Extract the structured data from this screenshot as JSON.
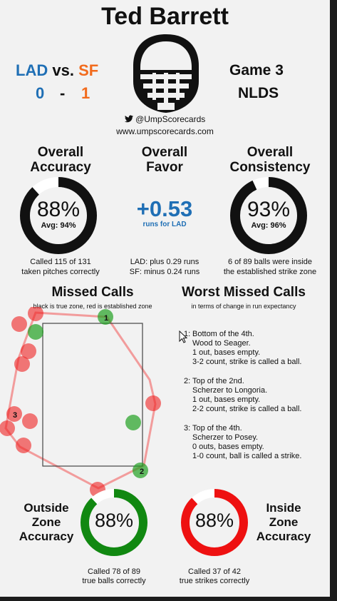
{
  "title": "Ted Barrett",
  "matchup": {
    "away": "LAD",
    "vs": "vs.",
    "home": "SF",
    "away_score": "0",
    "dash": "-",
    "home_score": "1"
  },
  "game": {
    "label": "Game 3",
    "series": "NLDS"
  },
  "social": {
    "handle": "@UmpScorecards",
    "url": "www.umpscorecards.com",
    "icon": "twitter-bird-icon"
  },
  "accuracy": {
    "title_1": "Overall",
    "title_2": "Accuracy",
    "value": "88%",
    "avg": "Avg: 94%",
    "fraction": 0.88,
    "note_1": "Called 115 of 131",
    "note_2": "taken pitches correctly"
  },
  "favor": {
    "title_1": "Overall",
    "title_2": "Favor",
    "value": "+0.53",
    "sub": "runs for LAD",
    "note_1": "LAD: plus 0.29 runs",
    "note_2": "SF: minus 0.24 runs"
  },
  "consistency": {
    "title_1": "Overall",
    "title_2": "Consistency",
    "value": "93%",
    "avg": "Avg: 96%",
    "fraction": 0.93,
    "note_1": "6 of 89 balls were inside",
    "note_2": "the established strike zone"
  },
  "missed": {
    "title": "Missed Calls",
    "subtitle": "black is true zone, red is established zone",
    "labels": [
      "1",
      "2",
      "3"
    ]
  },
  "worst": {
    "title": "Worst Missed Calls",
    "subtitle": "in terms of change in run expectancy",
    "items": [
      {
        "num": "1:",
        "lines": [
          "Bottom of the 4th.",
          "Wood to Seager.",
          "1 out, bases empty.",
          "3-2 count, strike is called a ball."
        ]
      },
      {
        "num": "2:",
        "lines": [
          "Top of the 2nd.",
          "Scherzer to Longoria.",
          "1 out, bases empty.",
          "2-2 count, strike is called a ball."
        ]
      },
      {
        "num": "3:",
        "lines": [
          "Top of the 4th.",
          "Scherzer to Posey.",
          "0 outs, bases empty.",
          "1-0 count, ball is called a strike."
        ]
      }
    ]
  },
  "outside": {
    "l1": "Outside",
    "l2": "Zone",
    "l3": "Accuracy",
    "value": "88%",
    "fraction": 0.88,
    "color": "#118811",
    "note_1": "Called 78 of 89",
    "note_2": "true balls correctly"
  },
  "inside": {
    "l1": "Inside",
    "l2": "Zone",
    "l3": "Accuracy",
    "value": "88%",
    "fraction": 0.88,
    "color": "#ee1111",
    "note_1": "Called 37 of 42",
    "note_2": "true strikes correctly"
  },
  "colors": {
    "blue": "#1f6fb5",
    "orange": "#f26b1d",
    "green": "#118811",
    "red": "#ee1111",
    "background": "#f2f2f2"
  }
}
